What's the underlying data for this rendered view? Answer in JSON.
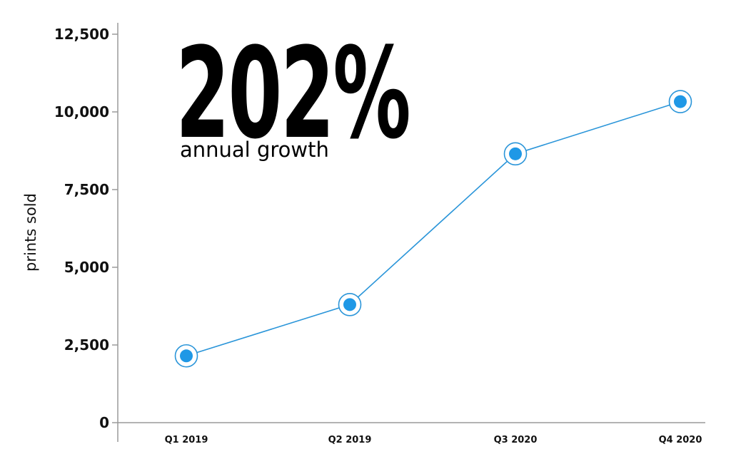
{
  "headline": {
    "value": "202%",
    "caption": "annual growth"
  },
  "chart_data": {
    "type": "line",
    "title": "",
    "xlabel": "",
    "ylabel": "prints sold",
    "categories": [
      "Q1 2019",
      "Q2 2019",
      "Q3 2020",
      "Q4 2020"
    ],
    "series": [
      {
        "values": [
          2150,
          3800,
          8650,
          10330
        ]
      }
    ],
    "ylim": [
      0,
      12500
    ],
    "yticks": [
      0,
      2500,
      5000,
      7500,
      10000,
      12500
    ],
    "ytick_labels": [
      "0",
      "2,500",
      "5,000",
      "7,500",
      "10,000",
      "12,500"
    ],
    "grid": false,
    "legend": "none",
    "colors": {
      "line": "#2a95d9",
      "marker_fill": "#1f98e6",
      "marker_ring": "#2a95d9",
      "axis": "#9a9a9a",
      "text": "#111111"
    }
  }
}
